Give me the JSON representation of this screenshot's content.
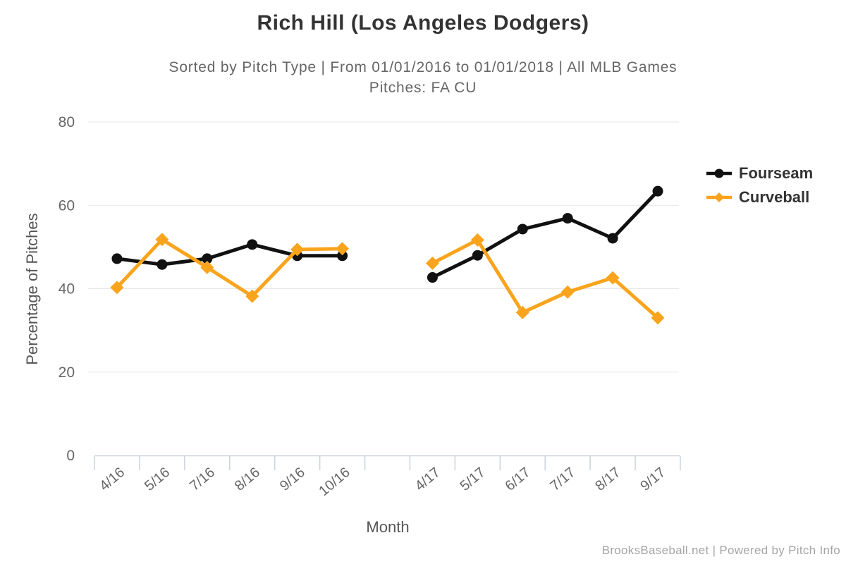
{
  "chart_data": {
    "type": "line",
    "title": "Rich Hill (Los Angeles Dodgers)",
    "subtitle_line1": "Sorted by Pitch Type | From 01/01/2016 to 01/01/2018 | All MLB Games",
    "subtitle_line2": "Pitches: FA CU",
    "xlabel": "Month",
    "ylabel": "Percentage of Pitches",
    "ylim": [
      0,
      80
    ],
    "yticks": [
      0,
      20,
      40,
      60,
      80
    ],
    "grid": true,
    "legend_position": "right",
    "categories": [
      "4/16",
      "5/16",
      "7/16",
      "8/16",
      "9/16",
      "10/16",
      "",
      "4/17",
      "5/17",
      "6/17",
      "7/17",
      "8/17",
      "9/17"
    ],
    "series": [
      {
        "name": "Fourseam",
        "color": "#111111",
        "marker": "circle",
        "values": [
          47.2,
          45.8,
          47.2,
          50.6,
          47.9,
          47.9,
          null,
          42.7,
          48.0,
          54.3,
          56.9,
          52.1,
          63.4
        ]
      },
      {
        "name": "Curveball",
        "color": "#F9A41C",
        "marker": "diamond",
        "values": [
          40.3,
          51.8,
          45.1,
          38.2,
          49.4,
          49.6,
          null,
          46.1,
          51.7,
          34.3,
          39.2,
          42.6,
          33.0
        ]
      }
    ],
    "axis_colors": {
      "grid_line": "#e6e6e6",
      "axis_line": "#ccd2dc",
      "tick_mark": "#ccd2dc",
      "tick_label": "#666666"
    }
  },
  "footer": {
    "credit": "BrooksBaseball.net | Powered by Pitch Info"
  }
}
